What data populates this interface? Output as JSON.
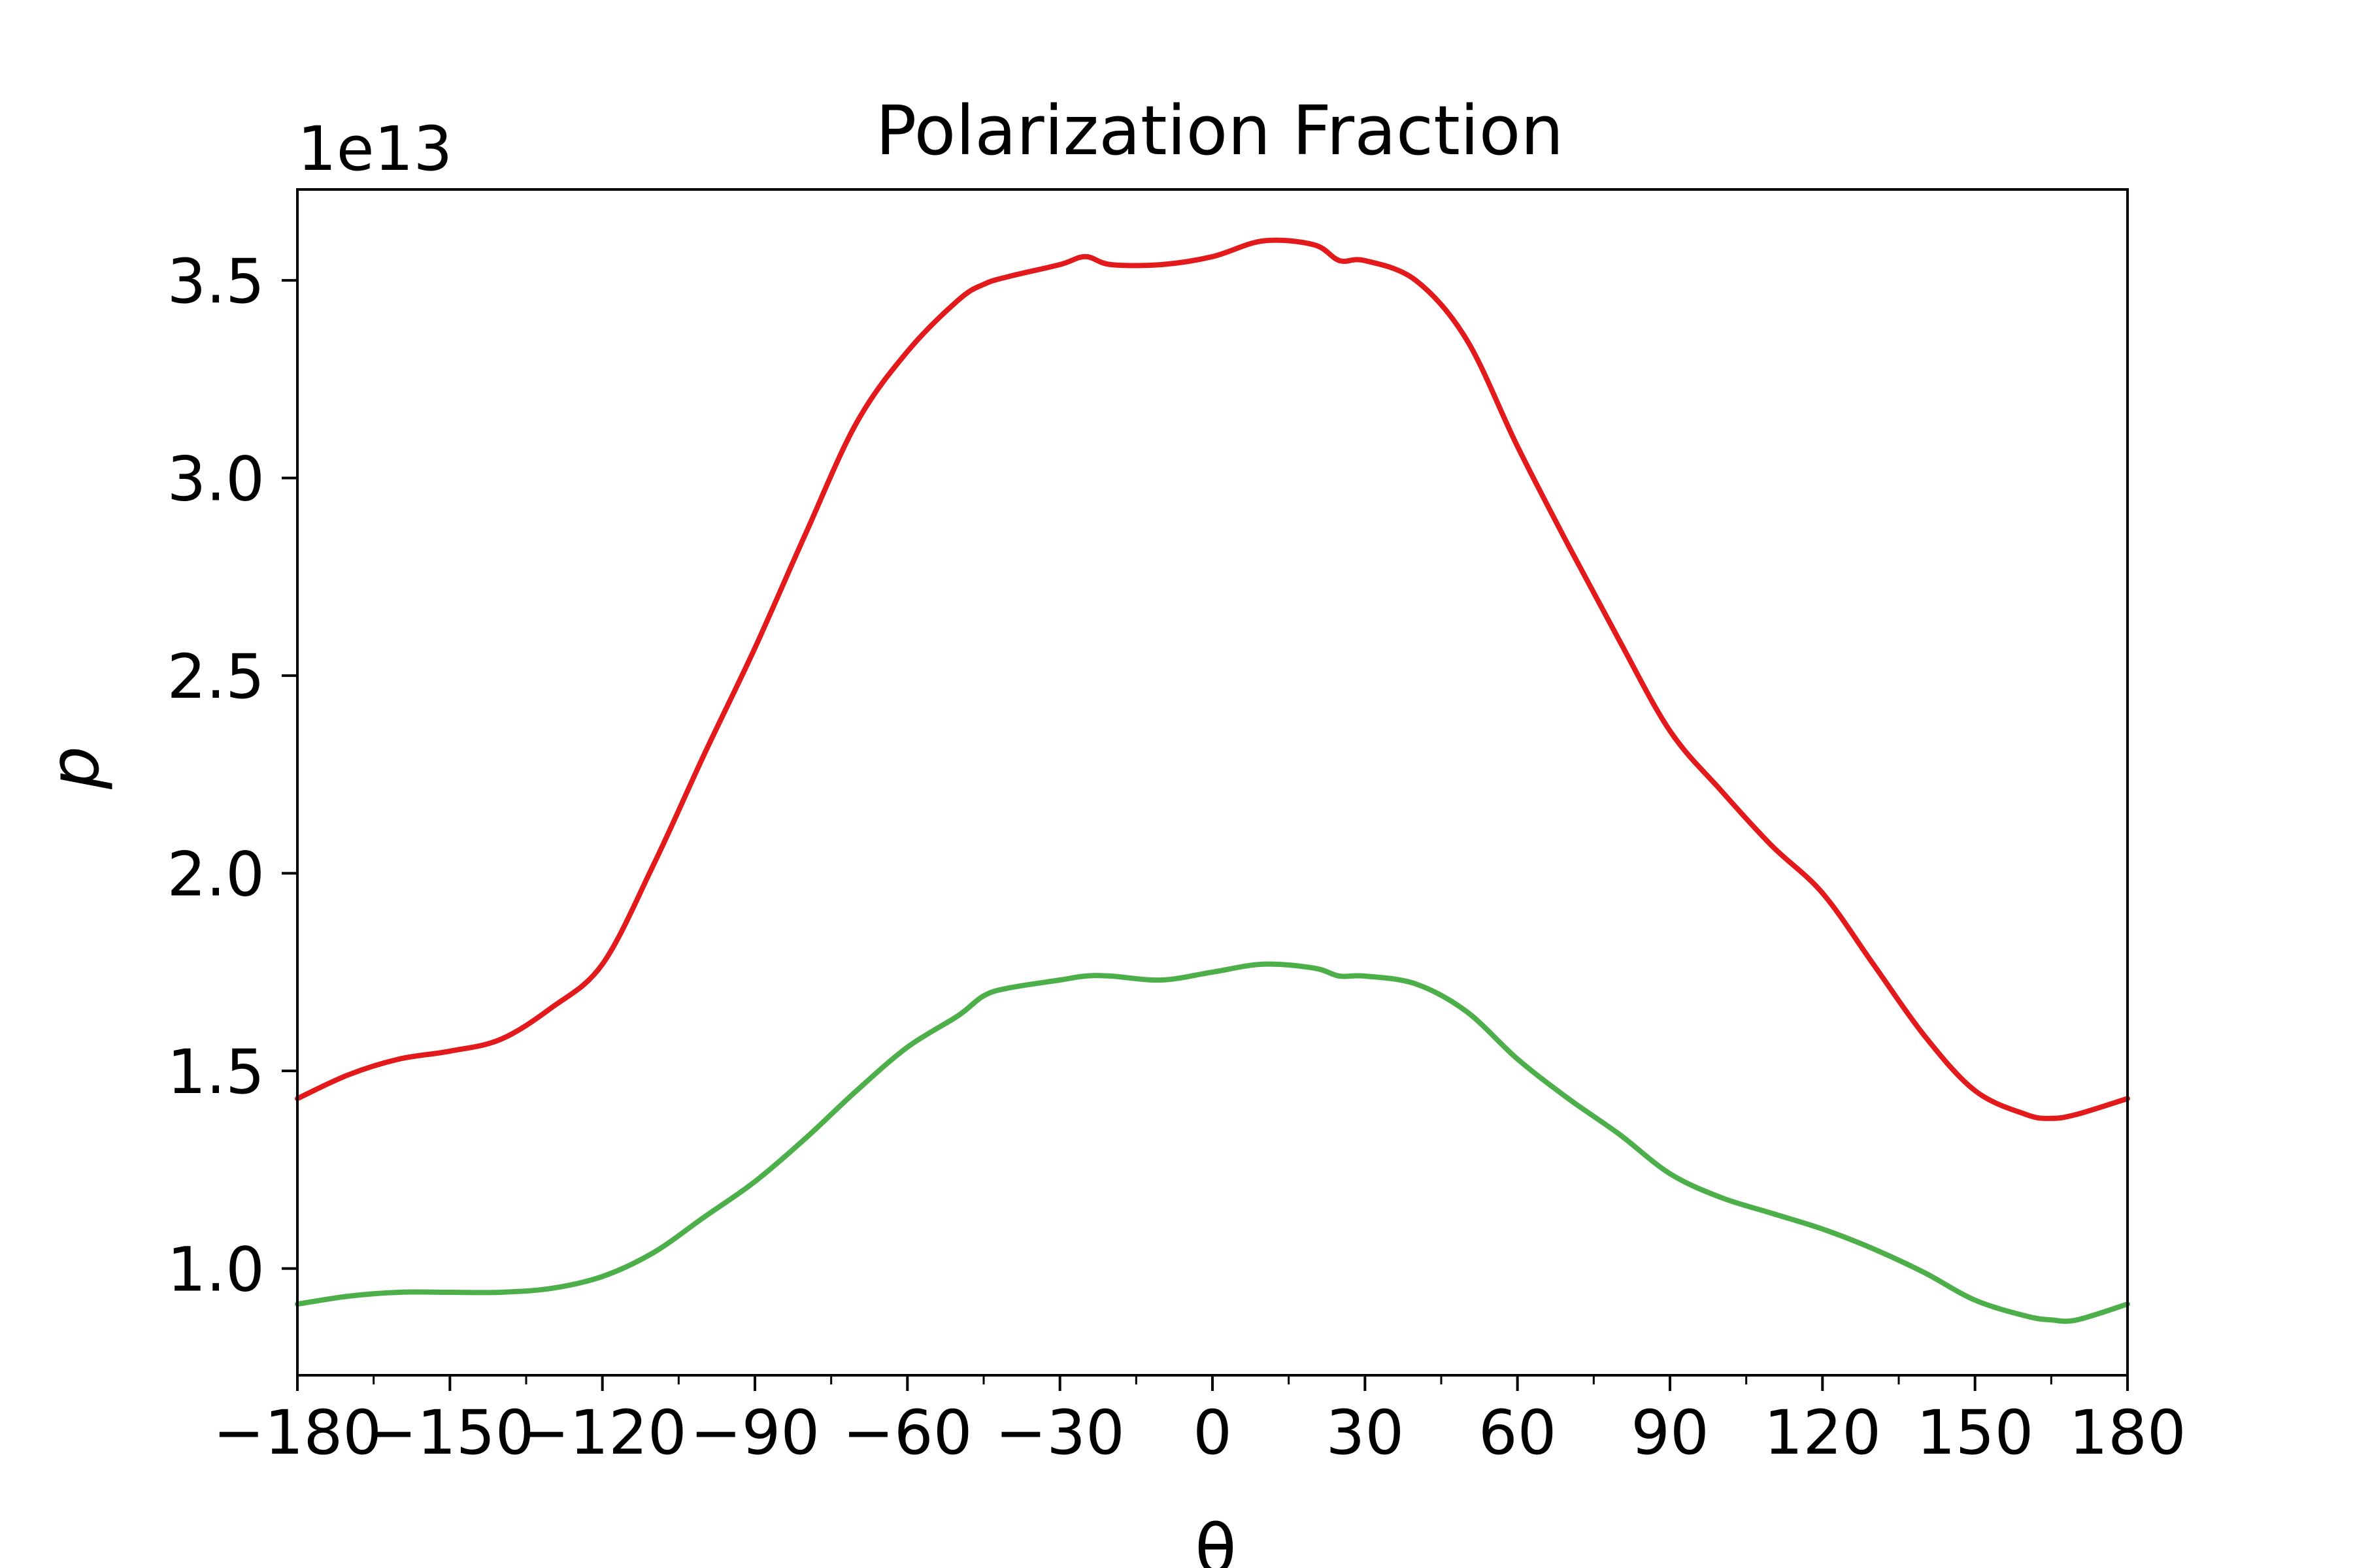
{
  "chart_data": {
    "type": "line",
    "title": "Polarization Fraction",
    "xlabel": "θ",
    "ylabel": "p",
    "y_offset_label": "1e13",
    "y_scale_factor": 10000000000000.0,
    "xlim": [
      -180,
      180
    ],
    "ylim": [
      0.73,
      3.73
    ],
    "grid": false,
    "x_ticks": [
      -180,
      -150,
      -120,
      -90,
      -60,
      -30,
      0,
      30,
      60,
      90,
      120,
      150,
      180
    ],
    "x_tick_labels": [
      "−180",
      "−150",
      "−120",
      "−90",
      "−60",
      "−30",
      "0",
      "30",
      "60",
      "90",
      "120",
      "150",
      "180"
    ],
    "x_minor_ticks": [
      -165,
      -135,
      -105,
      -75,
      -45,
      -15,
      15,
      45,
      75,
      105,
      135,
      165
    ],
    "y_ticks": [
      1.0,
      1.5,
      2.0,
      2.5,
      3.0,
      3.5
    ],
    "y_tick_labels": [
      "1.0",
      "1.5",
      "2.0",
      "2.5",
      "3.0",
      "3.5"
    ],
    "x": [
      -180,
      -170,
      -160,
      -150,
      -140,
      -130,
      -120,
      -110,
      -100,
      -90,
      -80,
      -70,
      -60,
      -50,
      -45,
      -40,
      -30,
      -25,
      -20,
      -10,
      0,
      10,
      20,
      25,
      30,
      40,
      50,
      60,
      70,
      80,
      90,
      100,
      110,
      120,
      130,
      140,
      150,
      160,
      165,
      170,
      180
    ],
    "series": [
      {
        "color": "#e31a1c",
        "values": [
          1.43,
          1.49,
          1.53,
          1.55,
          1.58,
          1.66,
          1.77,
          2.02,
          2.3,
          2.57,
          2.86,
          3.14,
          3.32,
          3.45,
          3.49,
          3.51,
          3.54,
          3.56,
          3.54,
          3.54,
          3.56,
          3.6,
          3.59,
          3.55,
          3.55,
          3.5,
          3.35,
          3.08,
          2.83,
          2.59,
          2.36,
          2.21,
          2.07,
          1.95,
          1.77,
          1.59,
          1.45,
          1.39,
          1.38,
          1.39,
          1.43
        ]
      },
      {
        "color": "#4daf4a",
        "values": [
          0.91,
          0.93,
          0.94,
          0.94,
          0.94,
          0.95,
          0.98,
          1.04,
          1.13,
          1.22,
          1.33,
          1.45,
          1.56,
          1.64,
          1.69,
          1.71,
          1.73,
          1.74,
          1.74,
          1.73,
          1.75,
          1.77,
          1.76,
          1.74,
          1.74,
          1.72,
          1.65,
          1.53,
          1.43,
          1.34,
          1.24,
          1.18,
          1.14,
          1.1,
          1.05,
          0.99,
          0.92,
          0.88,
          0.87,
          0.87,
          0.91
        ]
      }
    ]
  }
}
